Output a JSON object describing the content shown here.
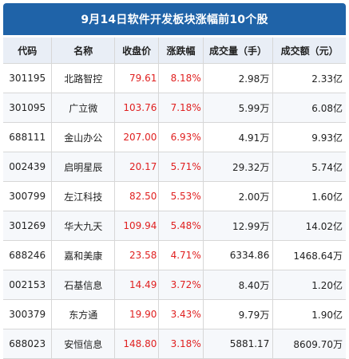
{
  "title": "9月14日软件开发板块涨幅前10个股",
  "colors": {
    "header_bg": "#1f63a8",
    "table_header_bg": "#e9eef6",
    "up": "#e02020"
  },
  "table": {
    "headers": [
      "代码",
      "名称",
      "收盘价",
      "涨跌幅",
      "成交量（手）",
      "成交额（元）"
    ],
    "rows": [
      {
        "code": "301195",
        "name": "北路智控",
        "price": "79.61",
        "change": "8.18%",
        "volume": "2.98万",
        "amount": "2.33亿"
      },
      {
        "code": "301095",
        "name": "广立微",
        "price": "103.76",
        "change": "7.18%",
        "volume": "5.99万",
        "amount": "6.08亿"
      },
      {
        "code": "688111",
        "name": "金山办公",
        "price": "207.00",
        "change": "6.93%",
        "volume": "4.91万",
        "amount": "9.93亿"
      },
      {
        "code": "002439",
        "name": "启明星辰",
        "price": "20.17",
        "change": "5.71%",
        "volume": "29.32万",
        "amount": "5.74亿"
      },
      {
        "code": "300799",
        "name": "左江科技",
        "price": "82.50",
        "change": "5.53%",
        "volume": "2.00万",
        "amount": "1.60亿"
      },
      {
        "code": "301269",
        "name": "华大九天",
        "price": "109.94",
        "change": "5.48%",
        "volume": "12.99万",
        "amount": "14.02亿"
      },
      {
        "code": "688246",
        "name": "嘉和美康",
        "price": "23.58",
        "change": "4.71%",
        "volume": "6334.86",
        "amount": "1468.64万"
      },
      {
        "code": "002153",
        "name": "石基信息",
        "price": "14.49",
        "change": "3.72%",
        "volume": "8.40万",
        "amount": "1.20亿"
      },
      {
        "code": "300379",
        "name": "东方通",
        "price": "19.90",
        "change": "3.43%",
        "volume": "9.79万",
        "amount": "1.90亿"
      },
      {
        "code": "688023",
        "name": "安恒信息",
        "price": "148.80",
        "change": "3.18%",
        "volume": "5881.17",
        "amount": "8609.70万"
      }
    ]
  }
}
